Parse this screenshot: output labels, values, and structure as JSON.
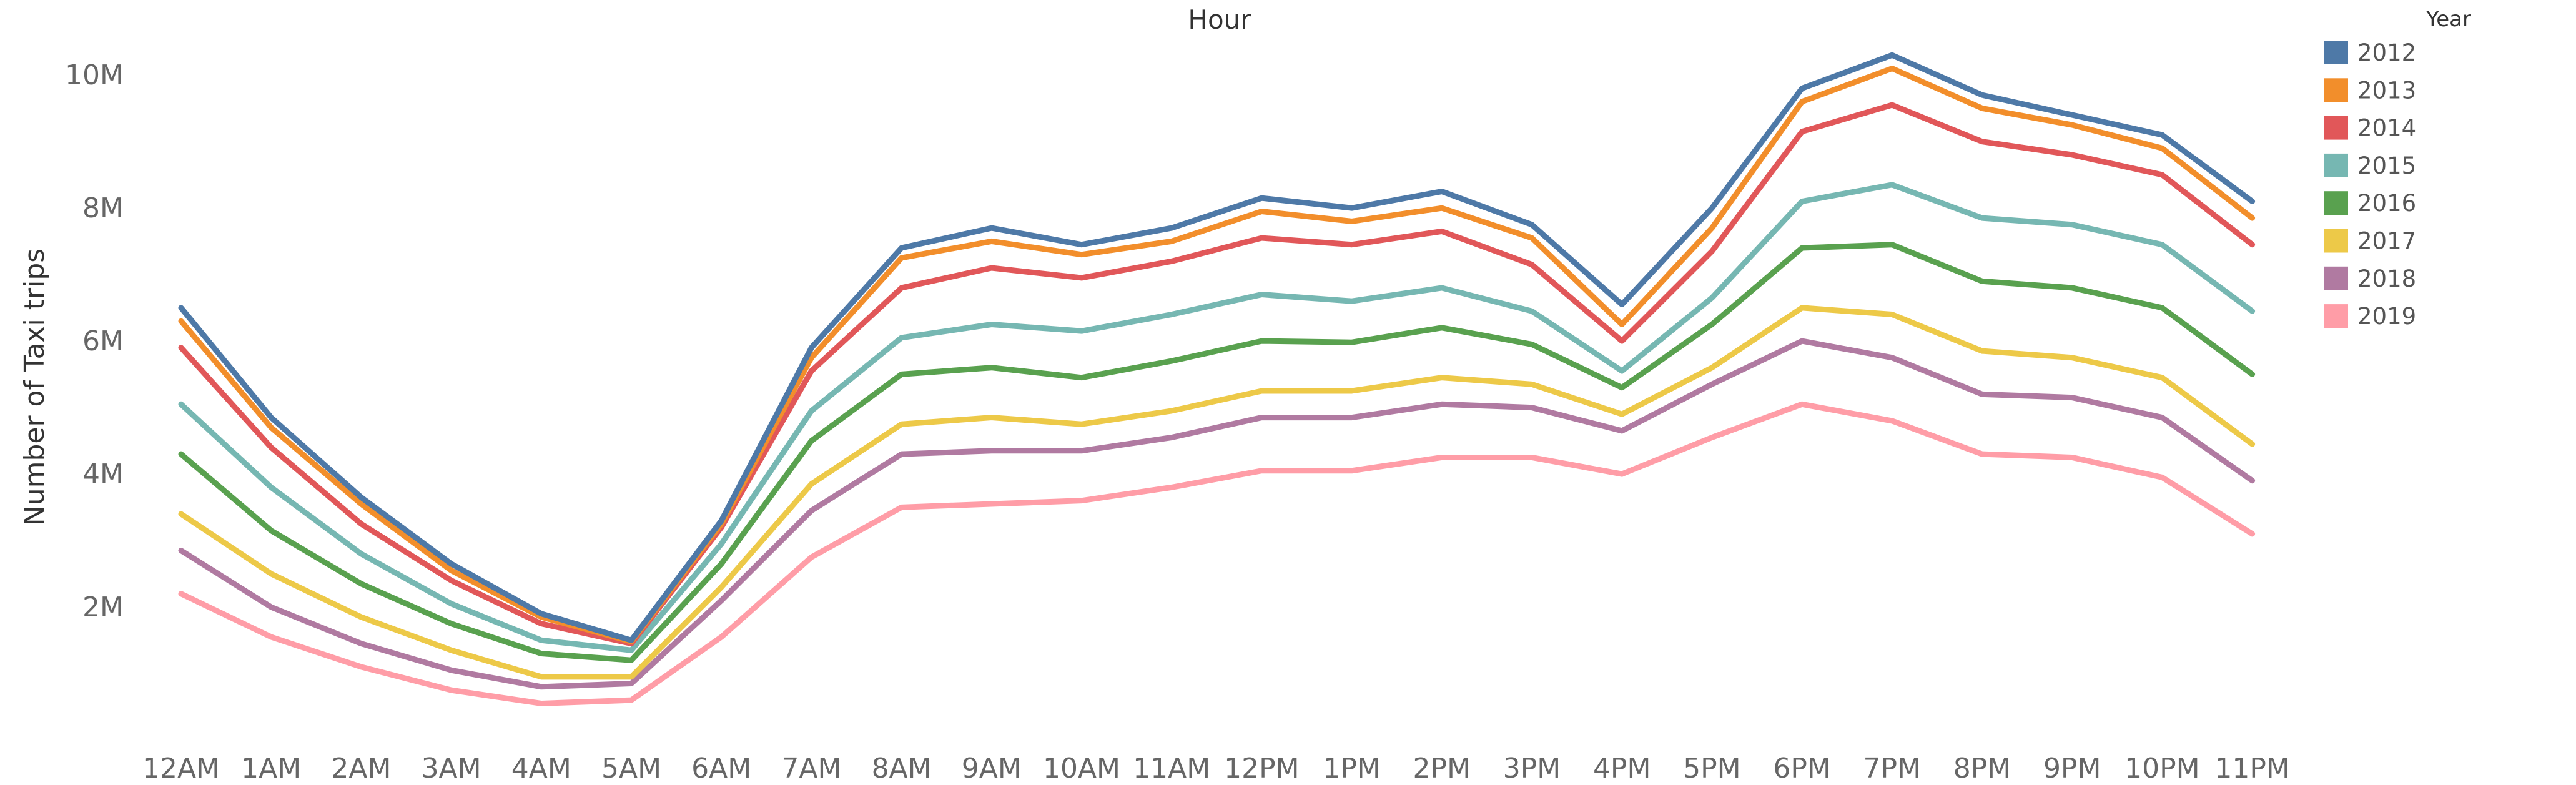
{
  "chart_data": {
    "type": "line",
    "title": "Hour",
    "xlabel": "",
    "ylabel": "Number of Taxi trips",
    "ylim": [
      0,
      10800000
    ],
    "yticks": [
      2000000,
      4000000,
      6000000,
      8000000,
      10000000
    ],
    "ytick_labels": [
      "2M",
      "4M",
      "6M",
      "8M",
      "10M"
    ],
    "grid": false,
    "legend_title": "Year",
    "legend_position": "right",
    "categories": [
      "12AM",
      "1AM",
      "2AM",
      "3AM",
      "4AM",
      "5AM",
      "6AM",
      "7AM",
      "8AM",
      "9AM",
      "10AM",
      "11AM",
      "12PM",
      "1PM",
      "2PM",
      "3PM",
      "4PM",
      "5PM",
      "6PM",
      "7PM",
      "8PM",
      "9PM",
      "10PM",
      "11PM"
    ],
    "series": [
      {
        "name": "2012",
        "color": "#4e79a7",
        "values": [
          6500000,
          4850000,
          3650000,
          2650000,
          1900000,
          1500000,
          3300000,
          5900000,
          7400000,
          7700000,
          7450000,
          7700000,
          8150000,
          8000000,
          8250000,
          7750000,
          6550000,
          8000000,
          9800000,
          10300000,
          9700000,
          9400000,
          9100000,
          8100000
        ]
      },
      {
        "name": "2013",
        "color": "#f28e2b",
        "values": [
          6300000,
          4700000,
          3550000,
          2550000,
          1850000,
          1480000,
          3250000,
          5750000,
          7250000,
          7500000,
          7300000,
          7500000,
          7950000,
          7800000,
          8000000,
          7550000,
          6250000,
          7700000,
          9600000,
          10100000,
          9500000,
          9250000,
          8900000,
          7850000
        ]
      },
      {
        "name": "2014",
        "color": "#e15759",
        "values": [
          5900000,
          4400000,
          3250000,
          2400000,
          1750000,
          1450000,
          3200000,
          5550000,
          6800000,
          7100000,
          6950000,
          7200000,
          7550000,
          7450000,
          7650000,
          7150000,
          6000000,
          7350000,
          9150000,
          9550000,
          9000000,
          8800000,
          8500000,
          7450000
        ]
      },
      {
        "name": "2015",
        "color": "#76b7b2",
        "values": [
          5050000,
          3800000,
          2800000,
          2050000,
          1500000,
          1350000,
          2950000,
          4950000,
          6050000,
          6250000,
          6150000,
          6400000,
          6700000,
          6600000,
          6800000,
          6450000,
          5550000,
          6650000,
          8100000,
          8350000,
          7850000,
          7750000,
          7450000,
          6450000
        ]
      },
      {
        "name": "2016",
        "color": "#59a14f",
        "values": [
          4300000,
          3150000,
          2350000,
          1750000,
          1300000,
          1200000,
          2650000,
          4500000,
          5500000,
          5600000,
          5450000,
          5700000,
          6000000,
          5980000,
          6200000,
          5950000,
          5300000,
          6250000,
          7400000,
          7450000,
          6900000,
          6800000,
          6500000,
          5500000
        ]
      },
      {
        "name": "2017",
        "color": "#edc948",
        "values": [
          3400000,
          2500000,
          1850000,
          1350000,
          950000,
          950000,
          2300000,
          3850000,
          4750000,
          4850000,
          4750000,
          4950000,
          5250000,
          5250000,
          5450000,
          5350000,
          4900000,
          5600000,
          6500000,
          6400000,
          5850000,
          5750000,
          5450000,
          4450000
        ]
      },
      {
        "name": "2018",
        "color": "#b07aa1",
        "values": [
          2850000,
          2000000,
          1450000,
          1050000,
          800000,
          850000,
          2100000,
          3450000,
          4300000,
          4350000,
          4350000,
          4550000,
          4850000,
          4850000,
          5050000,
          5000000,
          4650000,
          5350000,
          6000000,
          5750000,
          5200000,
          5150000,
          4850000,
          3900000
        ]
      },
      {
        "name": "2019",
        "color": "#ff9da7",
        "values": [
          2200000,
          1550000,
          1100000,
          750000,
          550000,
          600000,
          1550000,
          2750000,
          3500000,
          3550000,
          3600000,
          3800000,
          4050000,
          4050000,
          4250000,
          4250000,
          4000000,
          4550000,
          5050000,
          4800000,
          4300000,
          4250000,
          3950000,
          3100000
        ]
      }
    ]
  }
}
